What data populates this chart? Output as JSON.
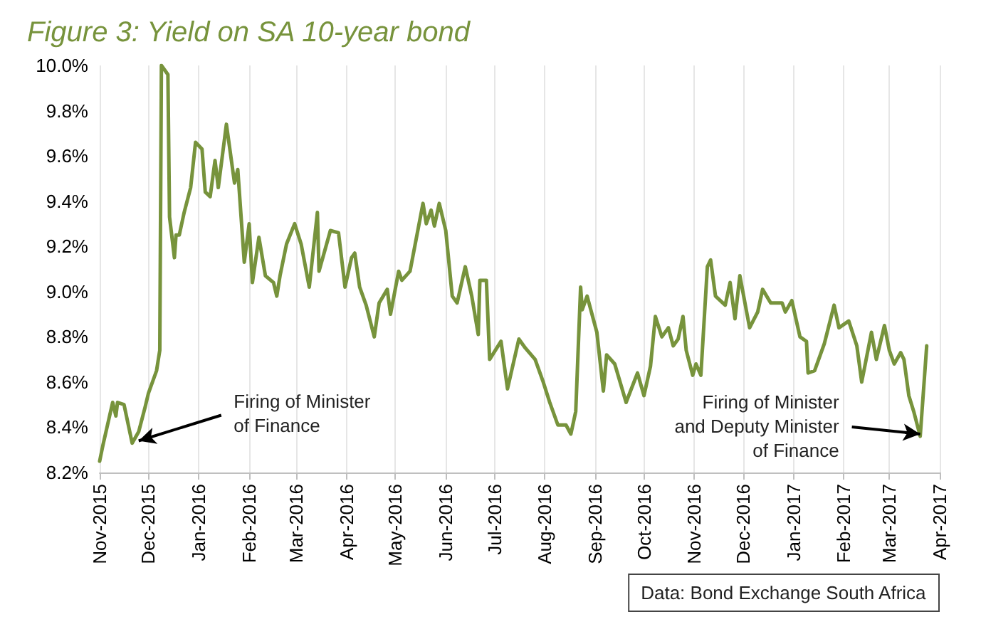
{
  "chart_data": {
    "type": "line",
    "title": "Figure 3: Yield on SA 10-year bond",
    "x": [
      "2015-11-01",
      "2015-11-03",
      "2015-11-09",
      "2015-11-11",
      "2015-11-12",
      "2015-11-16",
      "2015-11-21",
      "2015-11-25",
      "2015-11-29",
      "2015-12-01",
      "2015-12-06",
      "2015-12-08",
      "2015-12-09",
      "2015-12-13",
      "2015-12-14",
      "2015-12-17",
      "2015-12-18",
      "2015-12-20",
      "2015-12-23",
      "2015-12-27",
      "2015-12-30",
      "2016-01-03",
      "2016-01-05",
      "2016-01-08",
      "2016-01-11",
      "2016-01-13",
      "2016-01-18",
      "2016-01-23",
      "2016-01-25",
      "2016-01-29",
      "2016-02-01",
      "2016-02-03",
      "2016-02-07",
      "2016-02-11",
      "2016-02-16",
      "2016-02-18",
      "2016-02-20",
      "2016-02-24",
      "2016-02-29",
      "2016-03-04",
      "2016-03-09",
      "2016-03-14",
      "2016-03-15",
      "2016-03-22",
      "2016-03-27",
      "2016-03-31",
      "2016-04-04",
      "2016-04-06",
      "2016-04-09",
      "2016-04-13",
      "2016-04-18",
      "2016-04-21",
      "2016-04-26",
      "2016-04-28",
      "2016-05-03",
      "2016-05-05",
      "2016-05-10",
      "2016-05-18",
      "2016-05-20",
      "2016-05-23",
      "2016-05-25",
      "2016-05-28",
      "2016-06-01",
      "2016-06-05",
      "2016-06-08",
      "2016-06-13",
      "2016-06-17",
      "2016-06-21",
      "2016-06-22",
      "2016-06-26",
      "2016-06-28",
      "2016-07-05",
      "2016-07-09",
      "2016-07-16",
      "2016-07-20",
      "2016-07-26",
      "2016-07-31",
      "2016-08-04",
      "2016-08-09",
      "2016-08-14",
      "2016-08-17",
      "2016-08-20",
      "2016-08-23",
      "2016-08-24",
      "2016-08-27",
      "2016-09-02",
      "2016-09-06",
      "2016-09-08",
      "2016-09-13",
      "2016-09-20",
      "2016-09-27",
      "2016-10-01",
      "2016-10-05",
      "2016-10-08",
      "2016-10-12",
      "2016-10-16",
      "2016-10-19",
      "2016-10-22",
      "2016-10-25",
      "2016-10-27",
      "2016-10-31",
      "2016-11-02",
      "2016-11-05",
      "2016-11-09",
      "2016-11-11",
      "2016-11-14",
      "2016-11-20",
      "2016-11-23",
      "2016-11-26",
      "2016-11-29",
      "2016-12-05",
      "2016-12-10",
      "2016-12-13",
      "2016-12-18",
      "2016-12-25",
      "2016-12-27",
      "2016-12-31",
      "2017-01-05",
      "2017-01-09",
      "2017-01-10",
      "2017-01-14",
      "2017-01-20",
      "2017-01-26",
      "2017-01-29",
      "2017-02-04",
      "2017-02-09",
      "2017-02-12",
      "2017-02-18",
      "2017-02-21",
      "2017-02-26",
      "2017-03-01",
      "2017-03-04",
      "2017-03-08",
      "2017-03-10",
      "2017-03-13",
      "2017-03-16",
      "2017-03-20",
      "2017-03-24"
    ],
    "series": [
      {
        "color": "#77933c",
        "values": [
          8.25,
          8.32,
          8.51,
          8.45,
          8.51,
          8.5,
          8.33,
          8.38,
          8.49,
          8.55,
          8.65,
          8.74,
          10.0,
          9.96,
          9.33,
          9.15,
          9.25,
          9.25,
          9.35,
          9.46,
          9.66,
          9.63,
          9.44,
          9.42,
          9.58,
          9.46,
          9.74,
          9.48,
          9.54,
          9.13,
          9.3,
          9.04,
          9.24,
          9.07,
          9.04,
          8.98,
          9.07,
          9.21,
          9.3,
          9.21,
          9.02,
          9.35,
          9.09,
          9.27,
          9.26,
          9.02,
          9.15,
          9.17,
          9.02,
          8.94,
          8.8,
          8.95,
          9.01,
          8.9,
          9.09,
          9.05,
          9.09,
          9.39,
          9.3,
          9.36,
          9.29,
          9.39,
          9.27,
          8.98,
          8.95,
          9.11,
          8.98,
          8.81,
          9.05,
          9.05,
          8.7,
          8.78,
          8.57,
          8.79,
          8.75,
          8.7,
          8.6,
          8.51,
          8.41,
          8.41,
          8.37,
          8.47,
          9.02,
          8.92,
          8.98,
          8.82,
          8.56,
          8.72,
          8.68,
          8.51,
          8.64,
          8.54,
          8.67,
          8.89,
          8.8,
          8.84,
          8.76,
          8.79,
          8.89,
          8.74,
          8.63,
          8.68,
          8.63,
          9.11,
          9.14,
          8.98,
          8.94,
          9.04,
          8.88,
          9.07,
          8.84,
          8.91,
          9.01,
          8.95,
          8.95,
          8.91,
          8.96,
          8.8,
          8.78,
          8.64,
          8.65,
          8.77,
          8.94,
          8.84,
          8.87,
          8.76,
          8.6,
          8.82,
          8.7,
          8.85,
          8.74,
          8.68,
          8.73,
          8.7,
          8.54,
          8.47,
          8.36,
          8.76
        ]
      }
    ],
    "xlim": [
      "2015-11-01",
      "2017-04-01"
    ],
    "xticks": [
      {
        "value": "2015-11",
        "label": "Nov-2015"
      },
      {
        "value": "2015-12",
        "label": "Dec-2015"
      },
      {
        "value": "2016-01",
        "label": "Jan-2016"
      },
      {
        "value": "2016-02",
        "label": "Feb-2016"
      },
      {
        "value": "2016-03",
        "label": "Mar-2016"
      },
      {
        "value": "2016-04",
        "label": "Apr-2016"
      },
      {
        "value": "2016-05",
        "label": "May-2016"
      },
      {
        "value": "2016-06",
        "label": "Jun-2016"
      },
      {
        "value": "2016-07",
        "label": "Jul-2016"
      },
      {
        "value": "2016-08",
        "label": "Aug-2016"
      },
      {
        "value": "2016-09",
        "label": "Sep-2016"
      },
      {
        "value": "2016-10",
        "label": "Oct-2016"
      },
      {
        "value": "2016-11",
        "label": "Nov-2016"
      },
      {
        "value": "2016-12",
        "label": "Dec-2016"
      },
      {
        "value": "2017-01",
        "label": "Jan-2017"
      },
      {
        "value": "2017-02",
        "label": "Feb-2017"
      },
      {
        "value": "2017-03",
        "label": "Mar-2017"
      },
      {
        "value": "2017-04",
        "label": "Apr-2017"
      }
    ],
    "ylim": [
      8.2,
      10.0
    ],
    "yticks": [
      {
        "value": 8.2,
        "label": "8.2%"
      },
      {
        "value": 8.4,
        "label": "8.4%"
      },
      {
        "value": 8.6,
        "label": "8.6%"
      },
      {
        "value": 8.8,
        "label": "8.8%"
      },
      {
        "value": 9.0,
        "label": "9.0%"
      },
      {
        "value": 9.2,
        "label": "9.2%"
      },
      {
        "value": 9.4,
        "label": "9.4%"
      },
      {
        "value": 9.6,
        "label": "9.6%"
      },
      {
        "value": 9.8,
        "label": "9.8%"
      },
      {
        "value": 10.0,
        "label": "10.0%"
      }
    ],
    "grid": "x",
    "marker": "none",
    "line_style": "solid",
    "annotations": [
      {
        "text": "Firing of Minister\nof Finance",
        "x": "2015-11-25",
        "y": 8.34
      },
      {
        "text": "Firing of Minister\nand Deputy Minister\nof Finance",
        "x": "2017-03-20",
        "y": 8.37
      },
      "Data: Bond Exchange South Africa"
    ]
  }
}
